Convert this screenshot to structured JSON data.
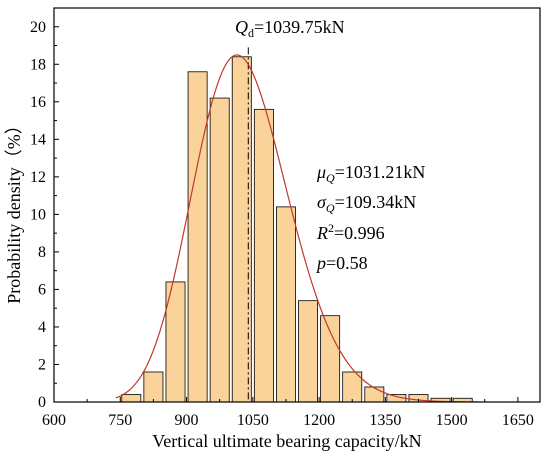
{
  "chart_data": {
    "type": "bar",
    "xlabel": "Vertical ultimate bearing capacity/kN",
    "ylabel": "Probability density（%）",
    "xlim": [
      600,
      1700
    ],
    "ylim": [
      0,
      21
    ],
    "x_ticks": [
      600,
      750,
      900,
      1050,
      1200,
      1350,
      1500,
      1650
    ],
    "y_ticks": [
      0,
      2,
      4,
      6,
      8,
      10,
      12,
      14,
      16,
      18,
      20
    ],
    "bin_width": 50,
    "bins": [
      {
        "center": 775,
        "value": 0.4
      },
      {
        "center": 825,
        "value": 1.6
      },
      {
        "center": 875,
        "value": 6.4
      },
      {
        "center": 925,
        "value": 17.6
      },
      {
        "center": 975,
        "value": 16.2
      },
      {
        "center": 1025,
        "value": 18.4
      },
      {
        "center": 1075,
        "value": 15.6
      },
      {
        "center": 1125,
        "value": 10.4
      },
      {
        "center": 1175,
        "value": 5.4
      },
      {
        "center": 1225,
        "value": 4.6
      },
      {
        "center": 1275,
        "value": 1.6
      },
      {
        "center": 1325,
        "value": 0.8
      },
      {
        "center": 1375,
        "value": 0.4
      },
      {
        "center": 1425,
        "value": 0.4
      },
      {
        "center": 1475,
        "value": 0.2
      },
      {
        "center": 1525,
        "value": 0.2
      }
    ],
    "fit_curve": {
      "type": "lognormal",
      "mu": 1031.21,
      "sigma": 109.34,
      "bin_width": 50,
      "x_range": [
        740,
        1560
      ]
    },
    "reference_line": {
      "x": 1039.75,
      "style": "dash-dot"
    },
    "annotations": {
      "qd_sym": "Q",
      "qd_sub": "d",
      "qd_val": "=1039.75kN",
      "mu_sym": "μ",
      "mu_sub": "Q",
      "mu_val": "=1031.21kN",
      "sigma_sym": "σ",
      "sigma_sub": "Q",
      "sigma_val": "=109.34kN",
      "r2_sym": "R",
      "r2_sup": "2",
      "r2_val": "=0.996",
      "p_sym": "p",
      "p_val": "=0.58"
    },
    "colors": {
      "bar_fill": "#FAD39B",
      "bar_stroke": "#000000",
      "curve": "#C0392B",
      "ref_line": "#000000"
    },
    "grid": false
  }
}
